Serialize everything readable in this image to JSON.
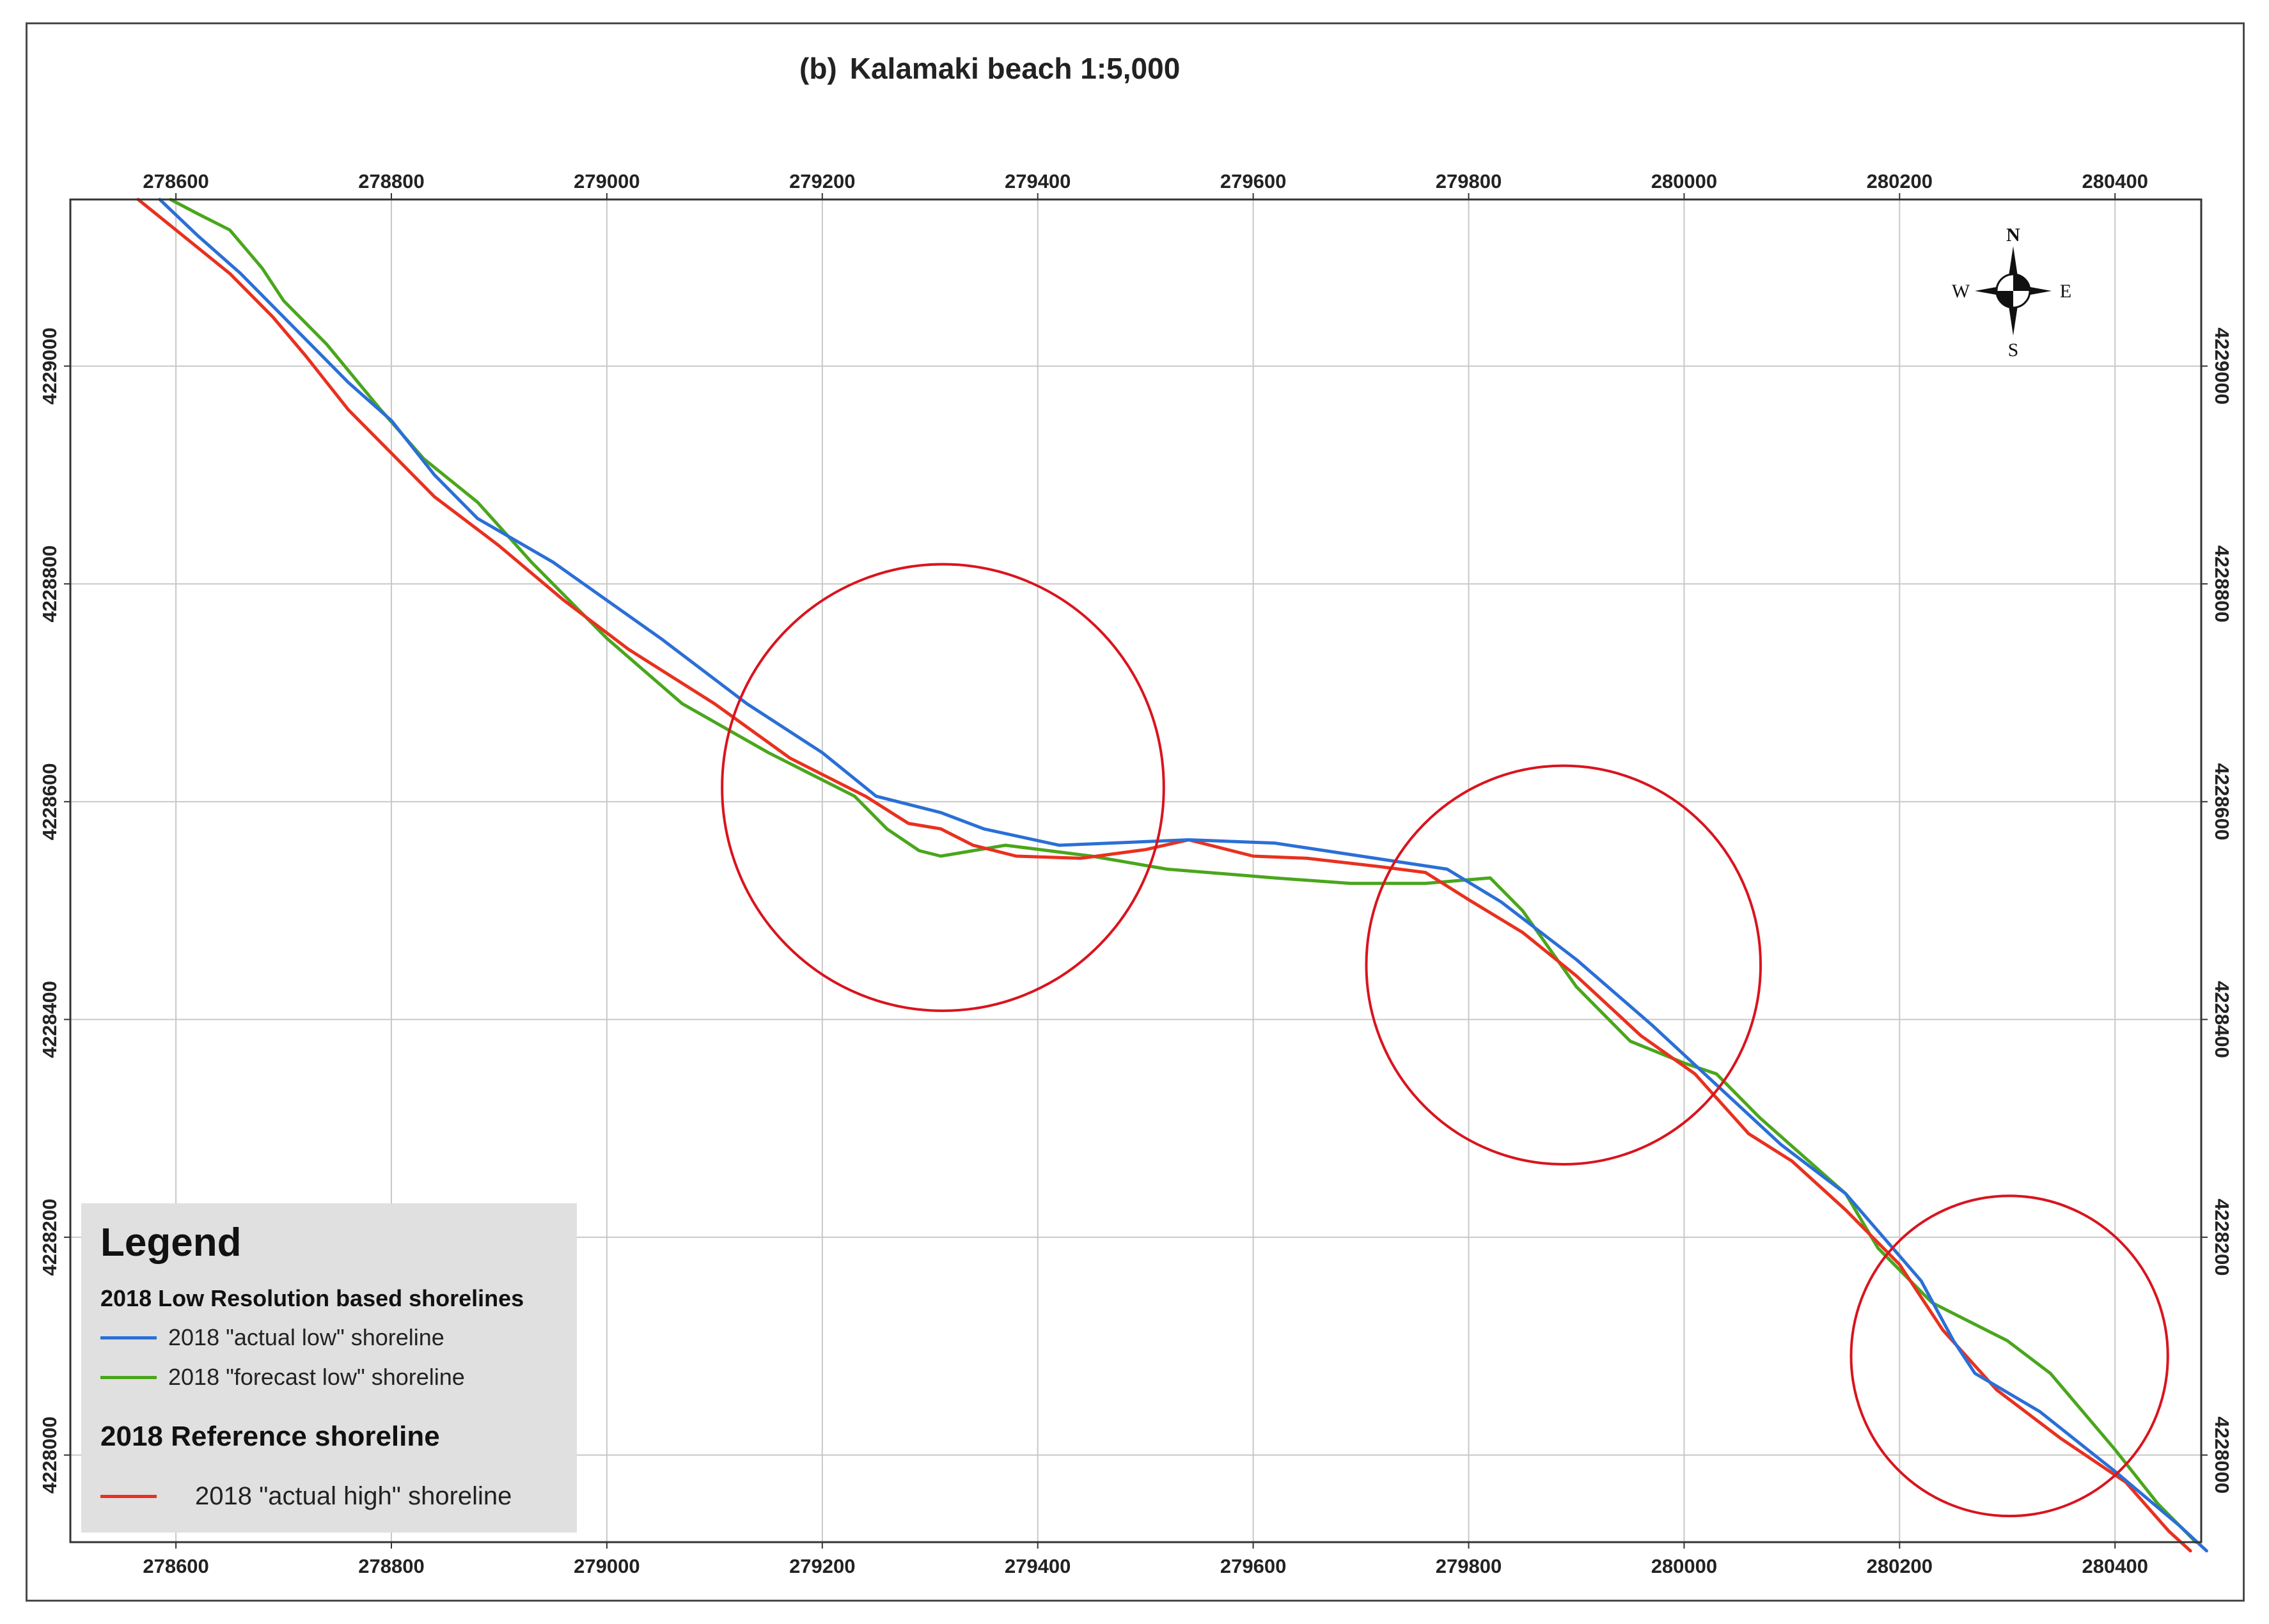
{
  "title": {
    "panel": "(b)",
    "text": "Kalamaki beach 1:5,000"
  },
  "axes": {
    "x_ticks": [
      "278600",
      "278800",
      "279000",
      "279200",
      "279400",
      "279600",
      "279800",
      "280000",
      "280200",
      "280400"
    ],
    "x_values": [
      278600,
      278800,
      279000,
      279200,
      279400,
      279600,
      279800,
      280000,
      280200,
      280400
    ],
    "y_ticks": [
      "4229000",
      "4228800",
      "4228600",
      "4228400",
      "4228200",
      "4228000"
    ],
    "y_values": [
      4229000,
      4228800,
      4228600,
      4228400,
      4228200,
      4228000
    ],
    "x_range": [
      278502,
      280480
    ],
    "y_range": [
      4227920,
      4229153
    ]
  },
  "compass": {
    "north": "N",
    "south": "S",
    "east": "E",
    "west": "W"
  },
  "legend": {
    "title": "Legend",
    "group1_title": "2018 Low Resolution based shorelines",
    "item_actual_low": "2018 \"actual low\" shoreline",
    "item_forecast_low": "2018 \"forecast low\" shoreline",
    "group2_title": "2018 Reference shoreline",
    "item_actual_high": "2018 \"actual high\" shoreline"
  },
  "colors": {
    "actual_low": "#2b6fd6",
    "forecast_low": "#4aa61c",
    "actual_high": "#e8311f",
    "highlight_circle": "#d9141e",
    "grid": "#c8c8c8",
    "frame": "#333333"
  },
  "shorelines": {
    "actual_low": [
      [
        278585,
        4229153
      ],
      [
        278620,
        4229120
      ],
      [
        278660,
        4229085
      ],
      [
        278700,
        4229045
      ],
      [
        278760,
        4228985
      ],
      [
        278800,
        4228950
      ],
      [
        278840,
        4228900
      ],
      [
        278880,
        4228860
      ],
      [
        278950,
        4228820
      ],
      [
        279050,
        4228750
      ],
      [
        279130,
        4228690
      ],
      [
        279200,
        4228645
      ],
      [
        279250,
        4228605
      ],
      [
        279310,
        4228590
      ],
      [
        279350,
        4228575
      ],
      [
        279420,
        4228560
      ],
      [
        279540,
        4228565
      ],
      [
        279620,
        4228562
      ],
      [
        279700,
        4228550
      ],
      [
        279780,
        4228538
      ],
      [
        279830,
        4228508
      ],
      [
        279900,
        4228455
      ],
      [
        279970,
        4228395
      ],
      [
        280030,
        4228340
      ],
      [
        280090,
        4228285
      ],
      [
        280150,
        4228240
      ],
      [
        280220,
        4228160
      ],
      [
        280250,
        4228105
      ],
      [
        280270,
        4228075
      ],
      [
        280330,
        4228040
      ],
      [
        280400,
        4227985
      ],
      [
        280460,
        4227935
      ],
      [
        280485,
        4227912
      ]
    ],
    "forecast_low": [
      [
        278595,
        4229153
      ],
      [
        278620,
        4229140
      ],
      [
        278650,
        4229125
      ],
      [
        278680,
        4229090
      ],
      [
        278700,
        4229060
      ],
      [
        278740,
        4229020
      ],
      [
        278790,
        4228960
      ],
      [
        278830,
        4228915
      ],
      [
        278880,
        4228875
      ],
      [
        278930,
        4228820
      ],
      [
        279000,
        4228750
      ],
      [
        279070,
        4228690
      ],
      [
        279150,
        4228645
      ],
      [
        279230,
        4228605
      ],
      [
        279260,
        4228575
      ],
      [
        279290,
        4228555
      ],
      [
        279310,
        4228550
      ],
      [
        279370,
        4228560
      ],
      [
        279450,
        4228550
      ],
      [
        279520,
        4228538
      ],
      [
        279620,
        4228530
      ],
      [
        279690,
        4228525
      ],
      [
        279760,
        4228525
      ],
      [
        279820,
        4228530
      ],
      [
        279850,
        4228500
      ],
      [
        279900,
        4228430
      ],
      [
        279950,
        4228380
      ],
      [
        280000,
        4228360
      ],
      [
        280030,
        4228350
      ],
      [
        280070,
        4228310
      ],
      [
        280150,
        4228240
      ],
      [
        280180,
        4228190
      ],
      [
        280230,
        4228140
      ],
      [
        280260,
        4228125
      ],
      [
        280300,
        4228105
      ],
      [
        280340,
        4228075
      ],
      [
        280400,
        4228005
      ],
      [
        280440,
        4227955
      ],
      [
        280475,
        4227920
      ]
    ],
    "actual_high": [
      [
        278565,
        4229153
      ],
      [
        278600,
        4229125
      ],
      [
        278650,
        4229085
      ],
      [
        278690,
        4229045
      ],
      [
        278720,
        4229010
      ],
      [
        278760,
        4228960
      ],
      [
        278800,
        4228920
      ],
      [
        278840,
        4228880
      ],
      [
        278900,
        4228835
      ],
      [
        278960,
        4228785
      ],
      [
        279020,
        4228740
      ],
      [
        279100,
        4228690
      ],
      [
        279170,
        4228640
      ],
      [
        279240,
        4228605
      ],
      [
        279280,
        4228580
      ],
      [
        279310,
        4228575
      ],
      [
        279340,
        4228560
      ],
      [
        279380,
        4228550
      ],
      [
        279440,
        4228548
      ],
      [
        279500,
        4228556
      ],
      [
        279540,
        4228565
      ],
      [
        279600,
        4228550
      ],
      [
        279650,
        4228548
      ],
      [
        279720,
        4228540
      ],
      [
        279760,
        4228535
      ],
      [
        279800,
        4228510
      ],
      [
        279850,
        4228480
      ],
      [
        279900,
        4228440
      ],
      [
        279960,
        4228385
      ],
      [
        280010,
        4228350
      ],
      [
        280060,
        4228295
      ],
      [
        280100,
        4228270
      ],
      [
        280150,
        4228225
      ],
      [
        280200,
        4228175
      ],
      [
        280240,
        4228115
      ],
      [
        280290,
        4228060
      ],
      [
        280350,
        4228015
      ],
      [
        280410,
        4227975
      ],
      [
        280450,
        4227930
      ],
      [
        280470,
        4227912
      ]
    ]
  },
  "highlight_circles": [
    {
      "cx": 279312,
      "cy": 4228613,
      "r": 205
    },
    {
      "cx": 279888,
      "cy": 4228450,
      "r": 183
    },
    {
      "cx": 280302,
      "cy": 4228091,
      "r": 147
    }
  ]
}
